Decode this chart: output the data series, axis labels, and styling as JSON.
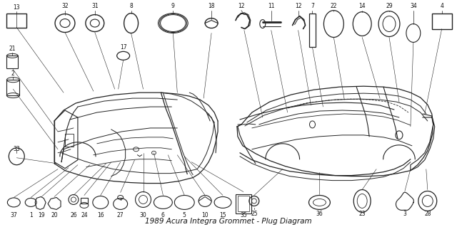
{
  "title": "1989 Acura Integra Grommet - Plug Diagram",
  "bg": "#ffffff",
  "lc": "#222222",
  "tc": "#111111",
  "fw": 6.4,
  "fh": 3.19,
  "dpi": 100,
  "fs": 5.5,
  "fs_title": 7.5
}
